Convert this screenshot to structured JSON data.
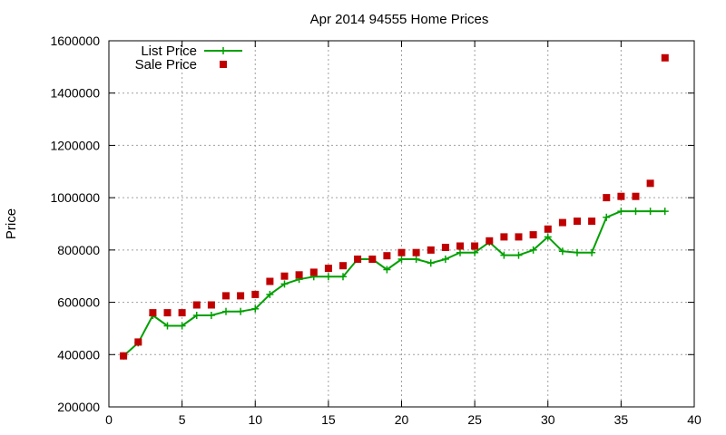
{
  "chart_data": {
    "type": "line",
    "title": "Apr 2014 94555 Home Prices",
    "xlabel": "",
    "ylabel": "Price",
    "xlim": [
      0,
      40
    ],
    "ylim": [
      200000,
      1600000
    ],
    "xticks": [
      0,
      5,
      10,
      15,
      20,
      25,
      30,
      35,
      40
    ],
    "yticks": [
      200000,
      400000,
      600000,
      800000,
      1000000,
      1200000,
      1400000,
      1600000
    ],
    "xtick_labels": [
      "0",
      "5",
      "10",
      "15",
      "20",
      "25",
      "30",
      "35",
      "40"
    ],
    "ytick_labels": [
      "200000",
      "400000",
      "600000",
      "800000",
      "1000000",
      "1200000",
      "1400000",
      "1600000"
    ],
    "grid": true,
    "legend_position": "top-left",
    "series": [
      {
        "name": "List Price",
        "style": "line+plus",
        "color": "#00a000",
        "x": [
          1,
          2,
          3,
          4,
          5,
          6,
          7,
          8,
          9,
          10,
          11,
          12,
          13,
          14,
          15,
          16,
          17,
          18,
          19,
          20,
          21,
          22,
          23,
          24,
          25,
          26,
          27,
          28,
          29,
          30,
          31,
          32,
          33,
          34,
          35,
          36,
          37,
          38
        ],
        "y": [
          395000,
          445000,
          550000,
          510000,
          510000,
          550000,
          550000,
          565000,
          565000,
          575000,
          630000,
          670000,
          688000,
          698000,
          698000,
          698000,
          765000,
          765000,
          725000,
          765000,
          765000,
          750000,
          765000,
          790000,
          790000,
          830000,
          780000,
          780000,
          800000,
          850000,
          795000,
          790000,
          790000,
          925000,
          948000,
          948000,
          948000,
          948000
        ]
      },
      {
        "name": "Sale Price",
        "style": "square",
        "color": "#c00000",
        "x": [
          1,
          2,
          3,
          4,
          5,
          6,
          7,
          8,
          9,
          10,
          11,
          12,
          13,
          14,
          15,
          16,
          17,
          18,
          19,
          20,
          21,
          22,
          23,
          24,
          25,
          26,
          27,
          28,
          29,
          30,
          31,
          32,
          33,
          34,
          35,
          36,
          37,
          38
        ],
        "y": [
          395000,
          448000,
          560000,
          560000,
          560000,
          590000,
          590000,
          625000,
          625000,
          630000,
          680000,
          700000,
          705000,
          715000,
          730000,
          740000,
          765000,
          765000,
          778000,
          790000,
          790000,
          800000,
          810000,
          815000,
          815000,
          835000,
          850000,
          850000,
          858000,
          880000,
          905000,
          910000,
          910000,
          1000000,
          1005000,
          1005000,
          1055000,
          1535000
        ]
      }
    ]
  }
}
